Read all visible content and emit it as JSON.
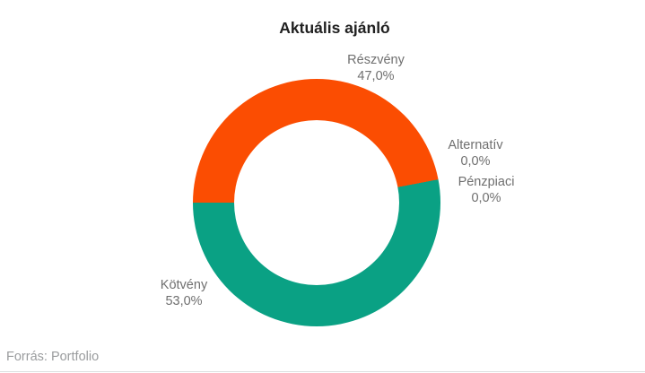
{
  "title": "Aktuális ajánló",
  "source": "Forrás: Portfolio",
  "colors": {
    "equity_orange": "#FB4D02",
    "bond_green": "#0AA184",
    "title_text": "#212121",
    "label_text": "#6F6F6F",
    "source_text": "#9A9C9E",
    "divider": "#DCDFE0"
  },
  "chart_data": {
    "type": "pie",
    "title": "Aktuális ajánló",
    "donut": true,
    "inner_radius_ratio": 0.67,
    "start_angle_deg": -90,
    "direction": "clockwise",
    "legend": "none",
    "grid": false,
    "slices": [
      {
        "label": "Részvény",
        "value": 47.0,
        "display": "47,0%",
        "color": "#FB4D02"
      },
      {
        "label": "Alternatív",
        "value": 0.0,
        "display": "0,0%",
        "color": "#FB4D02"
      },
      {
        "label": "Pénzpiaci",
        "value": 0.0,
        "display": "0,0%",
        "color": "#0AA184"
      },
      {
        "label": "Kötvény",
        "value": 53.0,
        "display": "53,0%",
        "color": "#0AA184"
      }
    ],
    "source": "Forrás: Portfolio"
  }
}
